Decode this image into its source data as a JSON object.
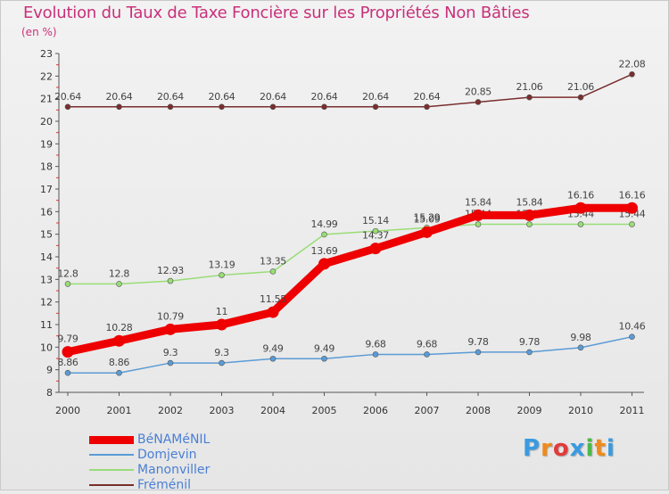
{
  "chart_data": {
    "type": "line",
    "title": "Evolution du Taux de Taxe Foncière sur les Propriétés Non Bâties",
    "ylabel": "(en %)",
    "xlabel": "",
    "categories": [
      "2000",
      "2001",
      "2002",
      "2003",
      "2004",
      "2005",
      "2006",
      "2007",
      "2008",
      "2009",
      "2010",
      "2011"
    ],
    "yticks": [
      "8",
      "9",
      "10",
      "11",
      "12",
      "13",
      "14",
      "15",
      "16",
      "17",
      "18",
      "19",
      "20",
      "21",
      "22",
      "23"
    ],
    "ylim": [
      8,
      23
    ],
    "series": [
      {
        "name": "Fréménil",
        "color": "#7a2e2e",
        "values": [
          20.64,
          20.64,
          20.64,
          20.64,
          20.64,
          20.64,
          20.64,
          20.64,
          20.85,
          21.06,
          21.06,
          22.08
        ],
        "labels": [
          "20.64",
          "20.64",
          "20.64",
          "20.64",
          "20.64",
          "20.64",
          "20.64",
          "20.64",
          "20.85",
          "21.06",
          "21.06",
          "22.08"
        ]
      },
      {
        "name": "Manonviller",
        "color": "#99dd77",
        "values": [
          12.8,
          12.8,
          12.93,
          13.19,
          13.35,
          14.99,
          15.14,
          15.29,
          15.44,
          15.44,
          15.44,
          15.44
        ],
        "labels": [
          "12.8",
          "12.8",
          "12.93",
          "13.19",
          "13.35",
          "14.99",
          "15.14",
          "15.29",
          "15.44",
          "15.44",
          "15.44",
          "15.44"
        ]
      },
      {
        "name": "Domjevin",
        "color": "#5b9bd5",
        "values": [
          8.86,
          8.86,
          9.3,
          9.3,
          9.49,
          9.49,
          9.68,
          9.68,
          9.78,
          9.78,
          9.98,
          10.46
        ],
        "labels": [
          "8.86",
          "8.86",
          "9.3",
          "9.3",
          "9.49",
          "9.49",
          "9.68",
          "9.68",
          "9.78",
          "9.78",
          "9.98",
          "10.46"
        ]
      },
      {
        "name": "BéNAMéNIL",
        "color": "#ee0000",
        "values": [
          9.79,
          10.28,
          10.79,
          11,
          11.55,
          13.69,
          14.37,
          15.09,
          15.84,
          15.84,
          16.16,
          16.16
        ],
        "labels": [
          "9.79",
          "10.28",
          "10.79",
          "11",
          "11.55",
          "13.69",
          "14.37",
          "15.09",
          "15.84",
          "15.84",
          "16.16",
          "16.16"
        ]
      }
    ],
    "legend": [
      "BéNAMéNIL",
      "Domjevin",
      "Manonviller",
      "Fréménil"
    ],
    "legend_position": "bottom-left"
  },
  "header": {
    "title": "Evolution du Taux de Taxe Foncière sur les Propriétés Non Bâties",
    "subtitle": "(en %)"
  },
  "legend_items": [
    {
      "label": "BéNAMéNIL",
      "color": "#ee0000"
    },
    {
      "label": "Domjevin",
      "color": "#5b9bd5"
    },
    {
      "label": "Manonviller",
      "color": "#99dd77"
    },
    {
      "label": "Fréménil",
      "color": "#7a2e2e"
    }
  ],
  "logo": {
    "letters": [
      "P",
      "r",
      "o",
      "x",
      "i",
      "t",
      "i"
    ],
    "colors": [
      "#3a9be0",
      "#f08a1c",
      "#e23b3b",
      "#3a9be0",
      "#4db84a",
      "#f08a1c",
      "#3a9be0"
    ]
  }
}
